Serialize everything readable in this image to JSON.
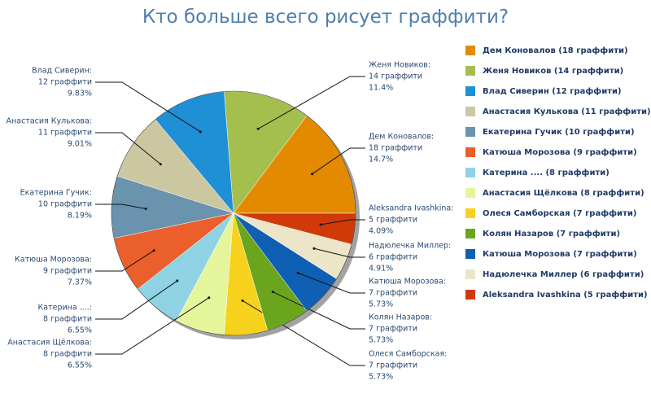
{
  "chart_data": {
    "type": "pie",
    "title": "Кто больше всего рисует граффити?",
    "categories": [
      "Дем Коновалов",
      "Женя Новиков",
      "Влад Сиверин",
      "Анастасия Кулькова",
      "Екатерина Гучик",
      "Катюша Морозова",
      "Катерина ....",
      "Анастасия Щёлкова",
      "Олеся Самборская",
      "Колян Назаров",
      "Катюша Морозова",
      "Надюлечка Миллер",
      "Aleksandra Ivashkina"
    ],
    "label_names": [
      "Дем Коновалов:",
      "Женя Новиков:",
      "Влад Сиверин:",
      "Анастасия Кулькова:",
      "Екатерина Гучик:",
      "Катюша Морозова:",
      "Катерина ....:",
      "Анастасия Щёлкова:",
      "Олеся Самборская:",
      "Колян Назаров:",
      "Катюша Морозова:",
      "Надюлечка Миллер:",
      "Aleksandra Ivashkina:"
    ],
    "legend_labels": [
      "Дем Коновалов (18 граффити)",
      "Женя Новиков (14 граффити)",
      "Влад Сиверин (12 граффити)",
      "Анастасия Кулькова (11 граффити)",
      "Екатерина Гучик (10 граффити)",
      "Катюша Морозова (9 граффити)",
      "Катерина .... (8 граффити)",
      "Анастасия Щёлкова (8 граффити)",
      "Олеся Самборская (7 граффити)",
      "Колян Назаров (7 граффити)",
      "Катюша Морозова (7 граффити)",
      "Надюлечка Миллер (6 граффити)",
      "Aleksandra Ivashkina (5 граффити)"
    ],
    "values": [
      18,
      14,
      12,
      11,
      10,
      9,
      8,
      8,
      7,
      7,
      7,
      6,
      5
    ],
    "value_labels": [
      "18 граффити",
      "14 граффити",
      "12 граффити",
      "11 граффити",
      "10 граффити",
      "9 граффити",
      "8 граффити",
      "8 граффити",
      "7 граффити",
      "7 граффити",
      "7 граффити",
      "6 граффити",
      "5 граффити"
    ],
    "percents": [
      {
        "value": 14.7,
        "label": "14.7%"
      },
      {
        "value": 11.4,
        "label": "11.4%"
      },
      {
        "value": 9.83,
        "label": "9.83%"
      },
      {
        "value": 9.01,
        "label": "9.01%"
      },
      {
        "value": 8.19,
        "label": "8.19%"
      },
      {
        "value": 7.37,
        "label": "7.37%"
      },
      {
        "value": 6.55,
        "label": "6.55%"
      },
      {
        "value": 6.55,
        "label": "6.55%"
      },
      {
        "value": 5.73,
        "label": "5.73%"
      },
      {
        "value": 5.73,
        "label": "5.73%"
      },
      {
        "value": 5.73,
        "label": "5.73%"
      },
      {
        "value": 4.91,
        "label": "4.91%"
      },
      {
        "value": 4.09,
        "label": "4.09%"
      }
    ],
    "colors": [
      "#e38a00",
      "#a5bf4f",
      "#1f8fd6",
      "#cbc8a1",
      "#6a93ae",
      "#ea5f2b",
      "#8ed2e4",
      "#e5f59b",
      "#f6d21c",
      "#6ba51e",
      "#0f5fb4",
      "#ece5c7",
      "#d03a09"
    ]
  }
}
